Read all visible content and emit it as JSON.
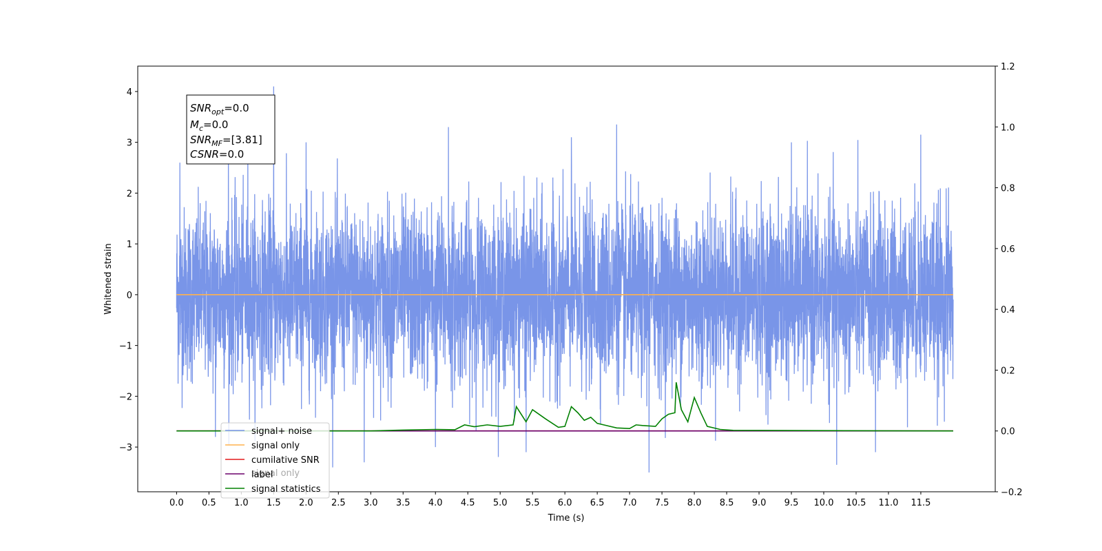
{
  "chart_data": {
    "type": "line",
    "xlabel": "Time (s)",
    "ylabel": "Whitened strain",
    "xlim": [
      -0.6,
      12.65
    ],
    "ylim": [
      -3.88,
      4.5
    ],
    "y2lim": [
      -0.2,
      1.2
    ],
    "x_ticks": [
      "0.0",
      "0.5",
      "1.0",
      "1.5",
      "2.0",
      "2.5",
      "3.0",
      "3.5",
      "4.0",
      "4.5",
      "5.0",
      "5.5",
      "6.0",
      "6.5",
      "7.0",
      "7.5",
      "8.0",
      "8.5",
      "9.0",
      "9.5",
      "10.0",
      "10.5",
      "11.0",
      "11.5"
    ],
    "y_ticks": [
      "−3",
      "−2",
      "−1",
      "0",
      "1",
      "2",
      "3",
      "4"
    ],
    "y2_ticks": [
      "−0.2",
      "0.0",
      "0.2",
      "0.4",
      "0.6",
      "0.8",
      "1.0",
      "1.2"
    ],
    "annotation": {
      "snr_opt": {
        "main": "SNR",
        "sub": "opt",
        "value": "=0.0"
      },
      "mc": {
        "main": "M",
        "sub": "c",
        "value": "=0.0"
      },
      "snr_mf": {
        "main": "SNR",
        "sub": "MF",
        "value": "=[3.81]"
      },
      "csnr": {
        "main": "CSNR",
        "value": "=0.0"
      }
    },
    "series": [
      {
        "name": "signal+ noise",
        "color": "#6a89e5",
        "axis": "left",
        "kind": "noise",
        "x_range": [
          0,
          12.0
        ],
        "sigma": 0.85,
        "peaks": [
          [
            0.05,
            2.6
          ],
          [
            0.6,
            -2.8
          ],
          [
            0.8,
            3.2
          ],
          [
            1.1,
            3.4
          ],
          [
            1.5,
            4.1
          ],
          [
            2.0,
            3.0
          ],
          [
            2.9,
            -3.3
          ],
          [
            4.0,
            -3.0
          ],
          [
            4.2,
            3.3
          ],
          [
            5.4,
            -3.1
          ],
          [
            6.1,
            3.1
          ],
          [
            6.8,
            3.35
          ],
          [
            7.3,
            -3.5
          ],
          [
            9.5,
            3.0
          ],
          [
            10.2,
            -3.35
          ],
          [
            10.8,
            -3.1
          ],
          [
            11.5,
            3.15
          ]
        ]
      },
      {
        "name": "signal only",
        "color": "#ffb24d",
        "axis": "left",
        "x": [
          0,
          12.0
        ],
        "y": [
          0,
          0
        ]
      },
      {
        "name": "cumilative SNR",
        "color": "#e31a1c",
        "axis": "right",
        "x": [
          0,
          12.0
        ],
        "y": [
          0,
          0
        ]
      },
      {
        "name": "label",
        "color": "#6a006a",
        "axis": "right",
        "x": [
          0,
          12.0
        ],
        "y": [
          0,
          0
        ]
      },
      {
        "name": "signal statistics",
        "color": "#008000",
        "axis": "right",
        "x": [
          0,
          3.0,
          3.5,
          4.0,
          4.3,
          4.45,
          4.6,
          4.8,
          5.0,
          5.2,
          5.25,
          5.4,
          5.5,
          5.7,
          5.9,
          6.0,
          6.1,
          6.2,
          6.3,
          6.4,
          6.5,
          6.6,
          6.8,
          7.0,
          7.1,
          7.2,
          7.4,
          7.5,
          7.6,
          7.7,
          7.72,
          7.8,
          7.9,
          8.0,
          8.1,
          8.2,
          8.4,
          8.6,
          12.0
        ],
        "y": [
          0,
          0,
          0.003,
          0.005,
          0.004,
          0.02,
          0.014,
          0.02,
          0.015,
          0.02,
          0.08,
          0.03,
          0.07,
          0.04,
          0.012,
          0.015,
          0.08,
          0.06,
          0.035,
          0.045,
          0.025,
          0.02,
          0.01,
          0.008,
          0.02,
          0.018,
          0.015,
          0.04,
          0.055,
          0.06,
          0.16,
          0.07,
          0.03,
          0.11,
          0.06,
          0.015,
          0.005,
          0.002,
          0
        ]
      }
    ],
    "legend": {
      "location": "lower left",
      "entries": [
        "signal+ noise",
        "signal only",
        "cumilative SNR",
        "label",
        "signal statistics"
      ],
      "hidden_text": "signal only"
    }
  }
}
